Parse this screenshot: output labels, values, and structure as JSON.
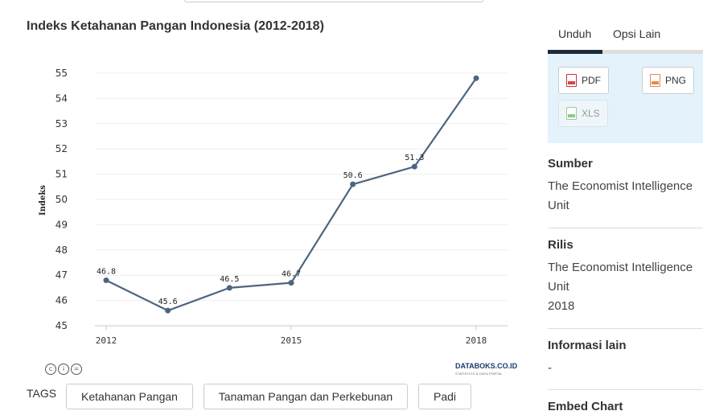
{
  "chart_data": {
    "type": "line",
    "title": "Indeks Ketahanan Pangan Indonesia (2012-2018)",
    "xlabel": "",
    "ylabel": "Indeks",
    "x": [
      2012,
      2013,
      2014,
      2015,
      2016,
      2017,
      2018
    ],
    "x_ticks": [
      "2012",
      "2015",
      "2018"
    ],
    "values": [
      46.8,
      45.6,
      46.5,
      46.7,
      50.6,
      51.3,
      54.8
    ],
    "data_labels": [
      "46.8",
      "45.6",
      "46.5",
      "46.7",
      "50.6",
      "51.3",
      ""
    ],
    "y_ticks": [
      "45",
      "46",
      "47",
      "48",
      "49",
      "50",
      "51",
      "52",
      "53",
      "54",
      "55"
    ],
    "ylim": [
      45,
      55
    ],
    "xlim": [
      2012,
      2018
    ],
    "grid": true,
    "legend": "none",
    "line_color": "#4d6580"
  },
  "watermark": {
    "brand": "DATABOKS.CO.ID",
    "sub": "STATISTICS & DATA PORTAL"
  },
  "credit_icons": [
    "cc-icon",
    "by-icon",
    "nc-icon"
  ],
  "tags": {
    "label": "TAGS",
    "items": [
      "Ketahanan Pangan",
      "Tanaman Pangan dan Perkebunan",
      "Padi"
    ]
  },
  "sidebar": {
    "tabs": [
      "Unduh",
      "Opsi Lain"
    ],
    "downloads": {
      "pdf": "PDF",
      "png": "PNG",
      "xls": "XLS"
    },
    "sumber": {
      "label": "Sumber",
      "value": "The Economist Intelligence Unit"
    },
    "rilis": {
      "label": "Rilis",
      "value": "The Economist Intelligence Unit",
      "year": "2018"
    },
    "info": {
      "label": "Informasi lain",
      "value": "-"
    },
    "embed": {
      "label": "Embed Chart"
    }
  }
}
